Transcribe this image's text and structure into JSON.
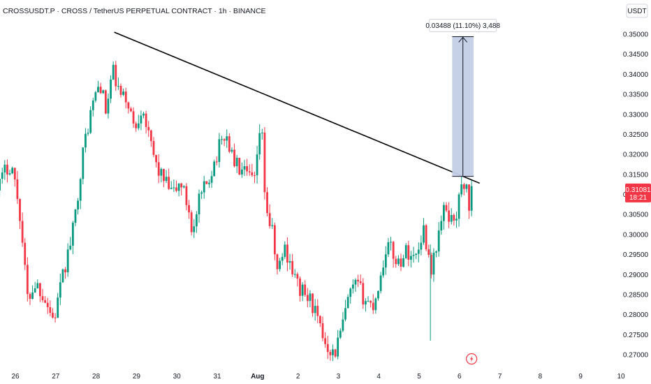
{
  "header": {
    "title": "CROSSUSDT.P · CROSS / TetherUS PERPETUAL CONTRACT · 1h · BINANCE"
  },
  "price_scale": {
    "currency_label": "USDT"
  },
  "last_price": {
    "value": "0.31081",
    "countdown": "18:21",
    "color": "#f23645"
  },
  "measure_tool": {
    "label": "0.03488 (11.10%) 3,488",
    "price_low": 0.3145,
    "price_high": 0.3494,
    "fill_color": "#c3cfe6",
    "stroke_color": "#131722"
  },
  "colors": {
    "up": "#089981",
    "down": "#f23645",
    "trendline": "#000000",
    "event_marker": "#f23645"
  },
  "chart_data": {
    "type": "candlestick",
    "title": "CROSSUSDT.P · CROSS / TetherUS PERPETUAL CONTRACT · 1h · BINANCE",
    "xlabel": "",
    "ylabel": "",
    "ylim": [
      0.2665,
      0.3555
    ],
    "grid": false,
    "x_ticks": [
      {
        "label": "26",
        "day": 26
      },
      {
        "label": "27",
        "day": 27
      },
      {
        "label": "28",
        "day": 28
      },
      {
        "label": "29",
        "day": 29
      },
      {
        "label": "30",
        "day": 30
      },
      {
        "label": "31",
        "day": 31
      },
      {
        "label": "Aug",
        "day": 32,
        "bold": true
      },
      {
        "label": "2",
        "day": 33
      },
      {
        "label": "3",
        "day": 34
      },
      {
        "label": "4",
        "day": 35
      },
      {
        "label": "5",
        "day": 36
      },
      {
        "label": "6",
        "day": 37
      },
      {
        "label": "7",
        "day": 38
      },
      {
        "label": "8",
        "day": 39
      },
      {
        "label": "9",
        "day": 40
      },
      {
        "label": "10",
        "day": 41
      }
    ],
    "y_ticks": [
      "0.27000",
      "0.27500",
      "0.28000",
      "0.28500",
      "0.29000",
      "0.29500",
      "0.30000",
      "0.30500",
      "0.31000",
      "0.31500",
      "0.32000",
      "0.32500",
      "0.33000",
      "0.33500",
      "0.34000",
      "0.34500",
      "0.35000"
    ],
    "price_path": [
      {
        "day": 25.55,
        "price": 0.311
      },
      {
        "day": 25.75,
        "price": 0.316
      },
      {
        "day": 25.9,
        "price": 0.318
      },
      {
        "day": 26.1,
        "price": 0.3065
      },
      {
        "day": 26.3,
        "price": 0.284
      },
      {
        "day": 26.5,
        "price": 0.288
      },
      {
        "day": 26.7,
        "price": 0.285
      },
      {
        "day": 26.95,
        "price": 0.2785
      },
      {
        "day": 27.2,
        "price": 0.2905
      },
      {
        "day": 27.45,
        "price": 0.302
      },
      {
        "day": 27.6,
        "price": 0.315
      },
      {
        "day": 27.75,
        "price": 0.325
      },
      {
        "day": 27.95,
        "price": 0.334
      },
      {
        "day": 28.1,
        "price": 0.338
      },
      {
        "day": 28.25,
        "price": 0.33
      },
      {
        "day": 28.4,
        "price": 0.341
      },
      {
        "day": 28.6,
        "price": 0.3345
      },
      {
        "day": 28.8,
        "price": 0.333
      },
      {
        "day": 28.95,
        "price": 0.326
      },
      {
        "day": 29.15,
        "price": 0.333
      },
      {
        "day": 29.3,
        "price": 0.324
      },
      {
        "day": 29.5,
        "price": 0.317
      },
      {
        "day": 29.7,
        "price": 0.313
      },
      {
        "day": 29.9,
        "price": 0.31
      },
      {
        "day": 30.1,
        "price": 0.313
      },
      {
        "day": 30.3,
        "price": 0.306
      },
      {
        "day": 30.4,
        "price": 0.3
      },
      {
        "day": 30.55,
        "price": 0.308
      },
      {
        "day": 30.75,
        "price": 0.313
      },
      {
        "day": 30.95,
        "price": 0.319
      },
      {
        "day": 31.2,
        "price": 0.3255
      },
      {
        "day": 31.4,
        "price": 0.3185
      },
      {
        "day": 31.6,
        "price": 0.3155
      },
      {
        "day": 31.8,
        "price": 0.314
      },
      {
        "day": 31.95,
        "price": 0.313
      },
      {
        "day": 32.08,
        "price": 0.3295
      },
      {
        "day": 32.2,
        "price": 0.307
      },
      {
        "day": 32.35,
        "price": 0.301
      },
      {
        "day": 32.5,
        "price": 0.29
      },
      {
        "day": 32.65,
        "price": 0.297
      },
      {
        "day": 32.8,
        "price": 0.2935
      },
      {
        "day": 32.95,
        "price": 0.288
      },
      {
        "day": 33.15,
        "price": 0.285
      },
      {
        "day": 33.35,
        "price": 0.283
      },
      {
        "day": 33.55,
        "price": 0.276
      },
      {
        "day": 33.7,
        "price": 0.273
      },
      {
        "day": 33.9,
        "price": 0.27
      },
      {
        "day": 34.1,
        "price": 0.277
      },
      {
        "day": 34.25,
        "price": 0.284
      },
      {
        "day": 34.45,
        "price": 0.2875
      },
      {
        "day": 34.65,
        "price": 0.284
      },
      {
        "day": 34.85,
        "price": 0.282
      },
      {
        "day": 35.05,
        "price": 0.2895
      },
      {
        "day": 35.2,
        "price": 0.298
      },
      {
        "day": 35.35,
        "price": 0.295
      },
      {
        "day": 35.5,
        "price": 0.293
      },
      {
        "day": 35.7,
        "price": 0.296
      },
      {
        "day": 35.9,
        "price": 0.294
      },
      {
        "day": 36.0,
        "price": 0.2975
      },
      {
        "day": 36.1,
        "price": 0.302
      },
      {
        "day": 36.25,
        "price": 0.294
      },
      {
        "day": 36.32,
        "price": 0.291
      },
      {
        "day": 36.45,
        "price": 0.299
      },
      {
        "day": 36.55,
        "price": 0.303
      },
      {
        "day": 36.65,
        "price": 0.307
      },
      {
        "day": 36.8,
        "price": 0.3035
      },
      {
        "day": 36.95,
        "price": 0.306
      },
      {
        "day": 37.05,
        "price": 0.312
      },
      {
        "day": 37.15,
        "price": 0.3135
      },
      {
        "day": 37.22,
        "price": 0.3065
      },
      {
        "day": 37.3,
        "price": 0.3108
      }
    ],
    "annotations": [
      {
        "type": "trendline",
        "from": {
          "day": 28.45,
          "price": 0.3505
        },
        "to": {
          "day": 37.5,
          "price": 0.3128
        }
      },
      {
        "type": "price_range",
        "label": "0.03488 (11.10%) 3,488",
        "day_start": 36.82,
        "day_end": 37.35,
        "price_low": 0.3145,
        "price_high": 0.3494
      },
      {
        "type": "last_price",
        "price": 0.31081,
        "label": "0.31081",
        "countdown": "18:21"
      }
    ]
  }
}
